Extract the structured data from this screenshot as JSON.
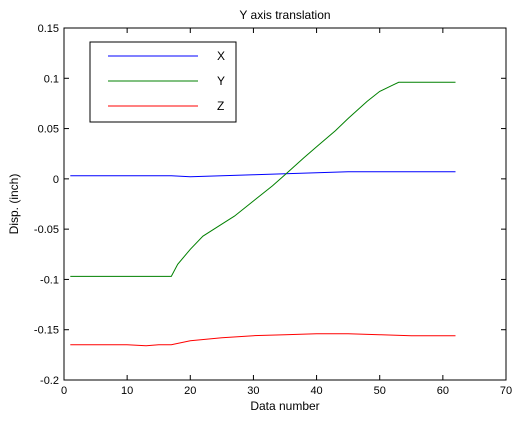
{
  "chart_data": {
    "type": "line",
    "title": "Y axis translation",
    "xlabel": "Data number",
    "ylabel": "Disp. (inch)",
    "xlim": [
      0,
      70
    ],
    "ylim": [
      -0.2,
      0.15
    ],
    "xticks": [
      0,
      10,
      20,
      30,
      40,
      50,
      60,
      70
    ],
    "yticks": [
      -0.2,
      -0.15,
      -0.1,
      -0.05,
      0,
      0.05,
      0.1,
      0.15
    ],
    "xtick_labels": [
      "0",
      "10",
      "20",
      "30",
      "40",
      "50",
      "60",
      "70"
    ],
    "ytick_labels": [
      "-0.2",
      "-0.15",
      "-0.1",
      "-0.05",
      "0",
      "0.05",
      "0.1",
      "0.15"
    ],
    "grid": false,
    "legend_position": "top-left",
    "series": [
      {
        "name": "X",
        "color": "#0000ff",
        "x": [
          1,
          5,
          10,
          15,
          17,
          20,
          25,
          30,
          35,
          40,
          45,
          50,
          55,
          62
        ],
        "y": [
          0.003,
          0.003,
          0.003,
          0.003,
          0.003,
          0.002,
          0.003,
          0.004,
          0.005,
          0.006,
          0.007,
          0.007,
          0.007,
          0.007
        ]
      },
      {
        "name": "Y",
        "color": "#008000",
        "x": [
          1,
          5,
          10,
          15,
          17,
          18,
          20,
          22,
          25,
          27,
          30,
          33,
          35,
          38,
          40,
          43,
          45,
          48,
          50,
          52,
          53,
          55,
          58,
          62
        ],
        "y": [
          -0.097,
          -0.097,
          -0.097,
          -0.097,
          -0.097,
          -0.085,
          -0.07,
          -0.057,
          -0.045,
          -0.037,
          -0.022,
          -0.007,
          0.004,
          0.021,
          0.032,
          0.048,
          0.06,
          0.077,
          0.087,
          0.093,
          0.096,
          0.096,
          0.096,
          0.096
        ]
      },
      {
        "name": "Z",
        "color": "#ff0000",
        "x": [
          1,
          5,
          10,
          13,
          15,
          17,
          20,
          25,
          30,
          35,
          40,
          45,
          50,
          55,
          62
        ],
        "y": [
          -0.165,
          -0.165,
          -0.165,
          -0.166,
          -0.165,
          -0.165,
          -0.161,
          -0.158,
          -0.156,
          -0.155,
          -0.154,
          -0.154,
          -0.155,
          -0.156,
          -0.156
        ]
      }
    ]
  }
}
